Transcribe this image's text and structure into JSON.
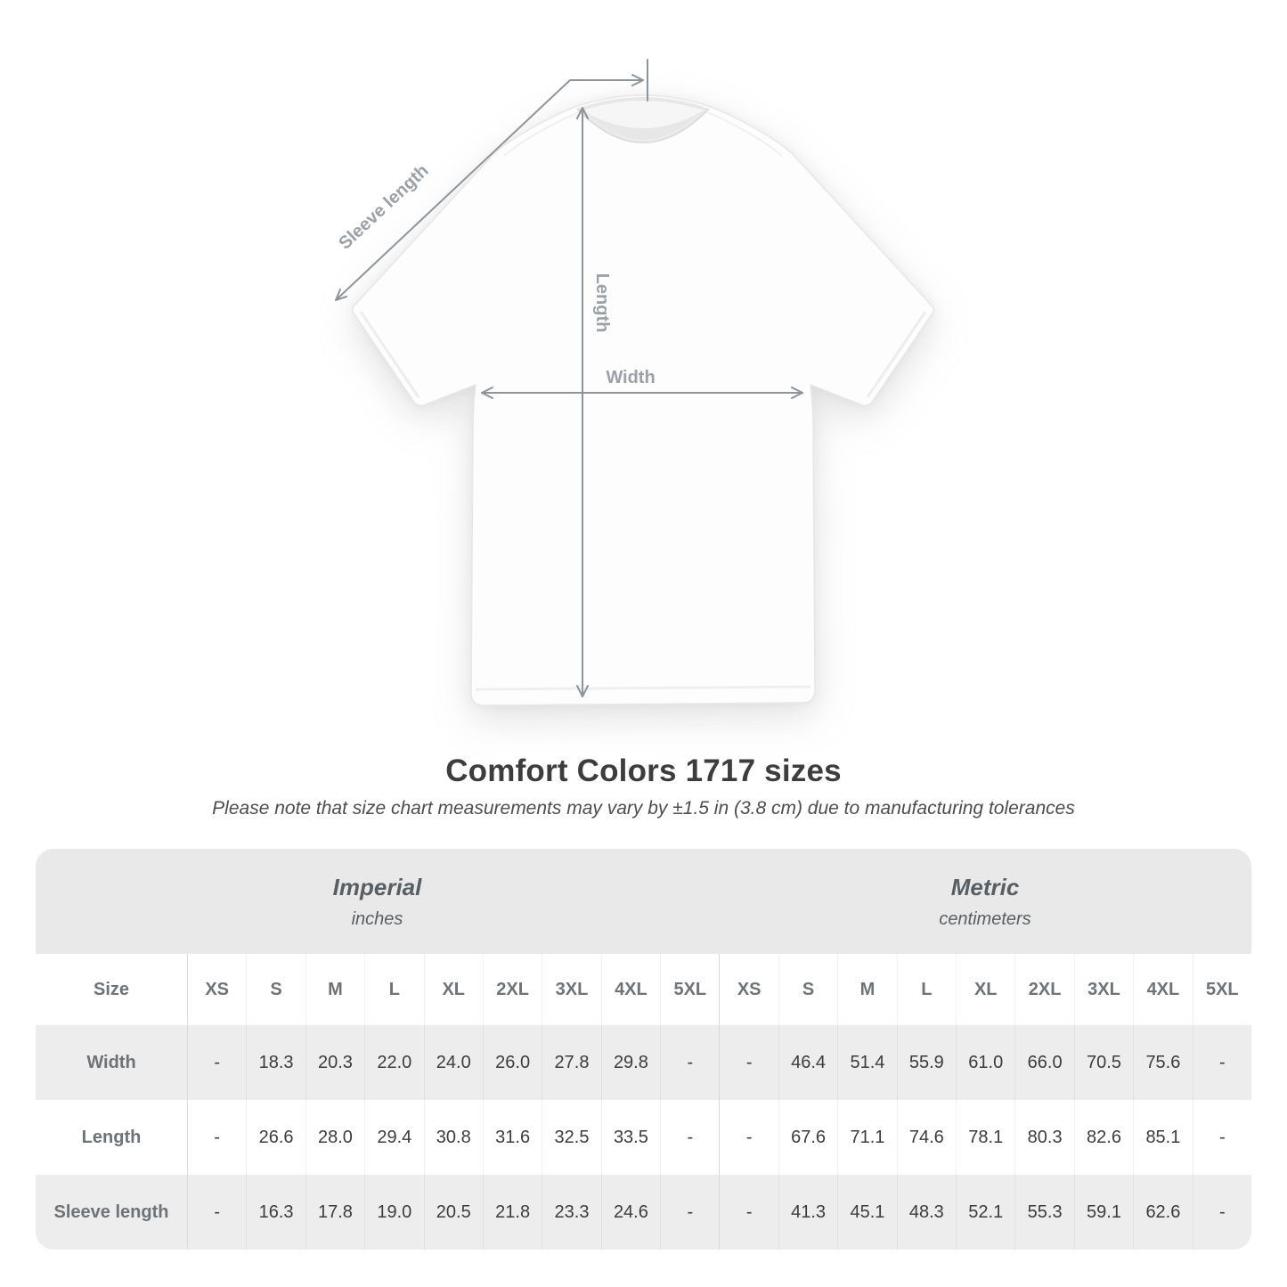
{
  "diagram": {
    "labels": {
      "sleeve": "Sleeve length",
      "length": "Length",
      "width": "Width"
    }
  },
  "header": {
    "title": "Comfort Colors 1717 sizes",
    "subtitle": "Please note that size chart measurements may vary by ±1.5 in (3.8 cm) due to manufacturing tolerances"
  },
  "table": {
    "groups": [
      {
        "name": "Imperial",
        "unit": "inches"
      },
      {
        "name": "Metric",
        "unit": "centimeters"
      }
    ],
    "size_col_header": "Size",
    "sizes": [
      "XS",
      "S",
      "M",
      "L",
      "XL",
      "2XL",
      "3XL",
      "4XL",
      "5XL",
      "XS",
      "S",
      "M",
      "L",
      "XL",
      "2XL",
      "3XL",
      "4XL",
      "5XL"
    ],
    "rows": [
      {
        "label": "Width",
        "values": [
          "-",
          "18.3",
          "20.3",
          "22.0",
          "24.0",
          "26.0",
          "27.8",
          "29.8",
          "-",
          "-",
          "46.4",
          "51.4",
          "55.9",
          "61.0",
          "66.0",
          "70.5",
          "75.6",
          "-"
        ]
      },
      {
        "label": "Length",
        "values": [
          "-",
          "26.6",
          "28.0",
          "29.4",
          "30.8",
          "31.6",
          "32.5",
          "33.5",
          "-",
          "-",
          "67.6",
          "71.1",
          "74.6",
          "78.1",
          "80.3",
          "82.6",
          "85.1",
          "-"
        ]
      },
      {
        "label": "Sleeve length",
        "values": [
          "-",
          "16.3",
          "17.8",
          "19.0",
          "20.5",
          "21.8",
          "23.3",
          "24.6",
          "-",
          "-",
          "41.3",
          "45.1",
          "48.3",
          "52.1",
          "55.3",
          "59.1",
          "62.6",
          "-"
        ]
      }
    ]
  },
  "colors": {
    "table_band": "#e9e9e9",
    "row_stripe": "#ededed",
    "arrow_gray": "#8d959b",
    "diagram_label_gray": "#9aa1a7",
    "title_gray": "#3d3d3d"
  }
}
